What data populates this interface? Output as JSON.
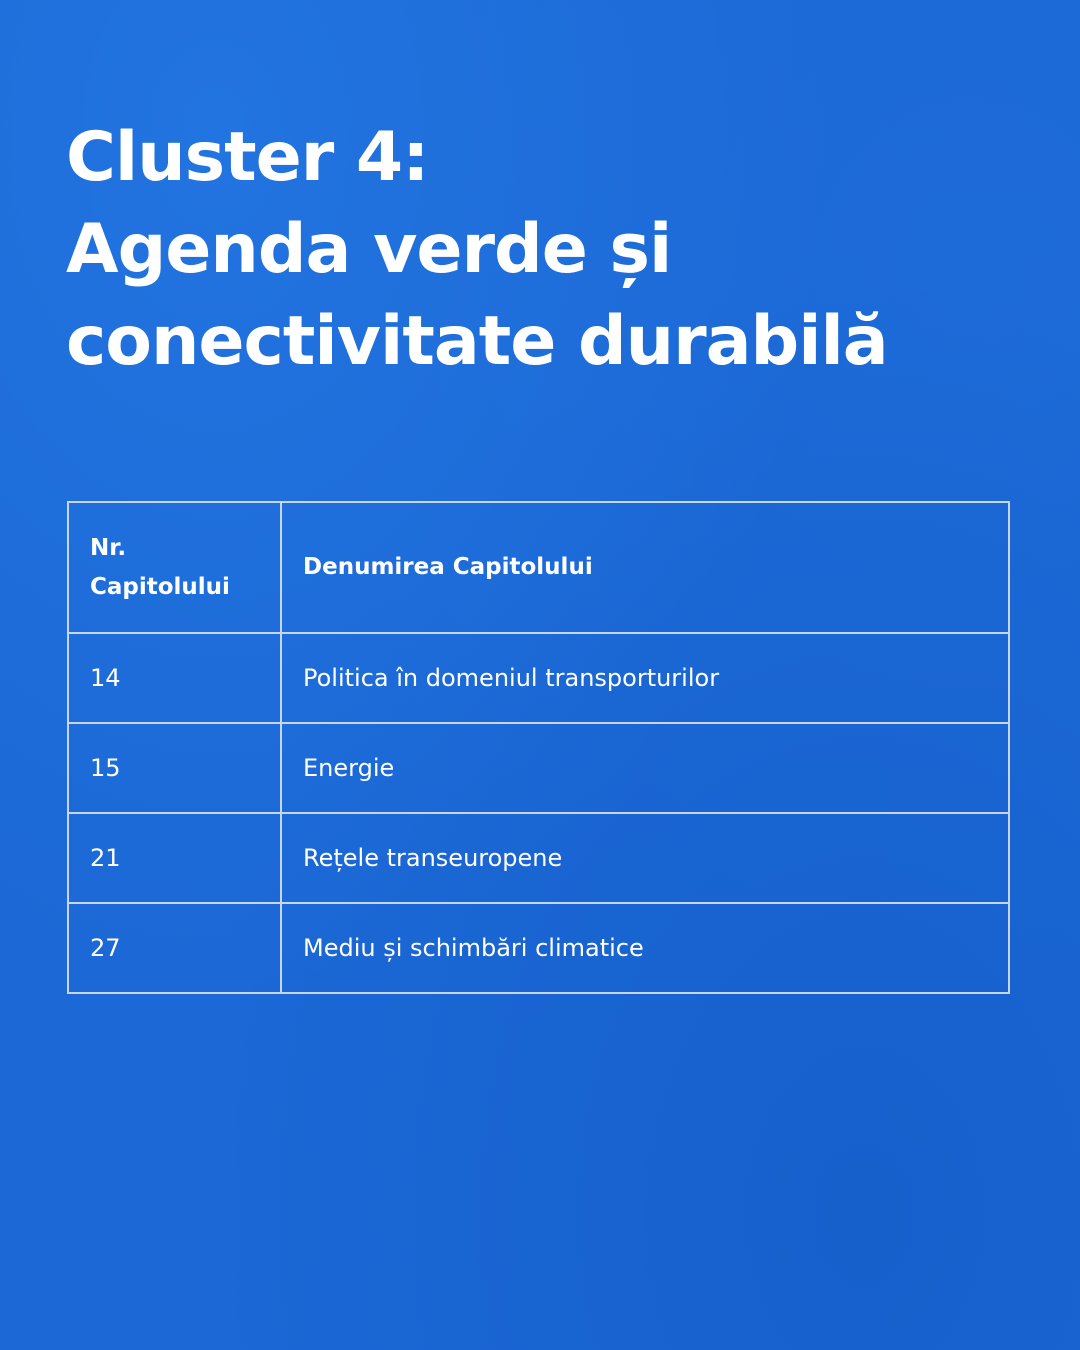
{
  "title": {
    "line1": "Cluster 4:",
    "line2": "Agenda verde și",
    "line3": "conectivitate durabilă"
  },
  "table": {
    "headers": {
      "nr_line1": "Nr.",
      "nr_line2": "Capitolului",
      "name": "Denumirea Capitolului"
    },
    "rows": [
      {
        "nr": "14",
        "name": "Politica în domeniul transporturilor"
      },
      {
        "nr": "15",
        "name": "Energie"
      },
      {
        "nr": "21",
        "name": "Rețele transeuropene"
      },
      {
        "nr": "27",
        "name": "Mediu și schimbări climatice"
      }
    ]
  },
  "colors": {
    "background": "#1b68d6",
    "text": "#ffffff",
    "border": "#c8d5ee"
  }
}
